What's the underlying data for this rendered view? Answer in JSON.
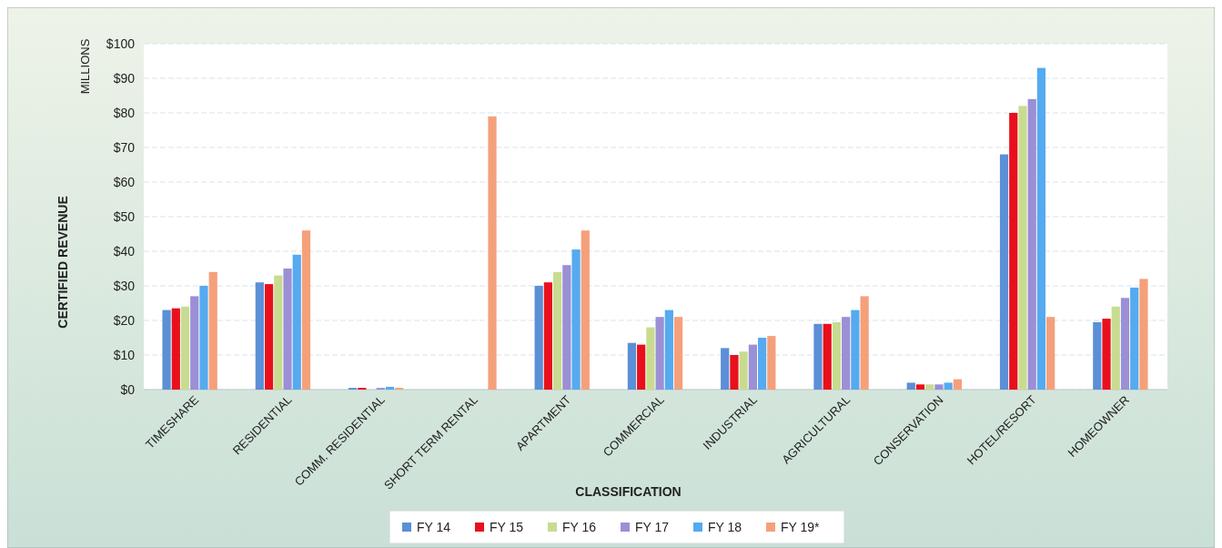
{
  "chart_data": {
    "type": "bar",
    "xlabel": "CLASSIFICATION",
    "ylabel": "CERTIFIED REVENUE",
    "annotations": [
      "MILLIONS"
    ],
    "categories": [
      "TIMESHARE",
      "RESIDENTIAL",
      "COMM. RESIDENTIAL",
      "SHORT TERM RENTAL",
      "APARTMENT",
      "COMMERCIAL",
      "INDUSTRIAL",
      "AGRICULTURAL",
      "CONSERVATION",
      "HOTEL/RESORT",
      "HOMEOWNER"
    ],
    "series": [
      {
        "name": "FY 14",
        "color": "#5b8fd6",
        "values": [
          23,
          31,
          0.5,
          null,
          30,
          13.5,
          12,
          19,
          2,
          68,
          19.5
        ]
      },
      {
        "name": "FY 15",
        "color": "#e8101c",
        "values": [
          23.5,
          30.5,
          0.5,
          null,
          31,
          13,
          10,
          19,
          1.5,
          80,
          20.5
        ]
      },
      {
        "name": "FY 16",
        "color": "#c8dc90",
        "values": [
          24,
          33,
          null,
          null,
          34,
          18,
          11,
          19.5,
          1.5,
          82,
          24
        ]
      },
      {
        "name": "FY 17",
        "color": "#9b8fd6",
        "values": [
          27,
          35,
          0.5,
          null,
          36,
          21,
          13,
          21,
          1.5,
          84,
          26.5
        ]
      },
      {
        "name": "FY 18",
        "color": "#55aaf0",
        "values": [
          30,
          39,
          0.8,
          null,
          40.5,
          23,
          15,
          23,
          2,
          93,
          29.5
        ]
      },
      {
        "name": "FY 19*",
        "color": "#f5a07a",
        "values": [
          34,
          46,
          0.5,
          79,
          46,
          21,
          15.5,
          27,
          3,
          21,
          32
        ]
      }
    ],
    "ylim": [
      0,
      100
    ],
    "yticks": [
      {
        "value": 0,
        "label": "$0"
      },
      {
        "value": 10,
        "label": "$10"
      },
      {
        "value": 20,
        "label": "$20"
      },
      {
        "value": 30,
        "label": "$30"
      },
      {
        "value": 40,
        "label": "$40"
      },
      {
        "value": 50,
        "label": "$50"
      },
      {
        "value": 60,
        "label": "$60"
      },
      {
        "value": 70,
        "label": "$70"
      },
      {
        "value": 80,
        "label": "$80"
      },
      {
        "value": 90,
        "label": "$90"
      },
      {
        "value": 100,
        "label": "$100"
      }
    ],
    "grid": "y",
    "legend": "bottom"
  }
}
